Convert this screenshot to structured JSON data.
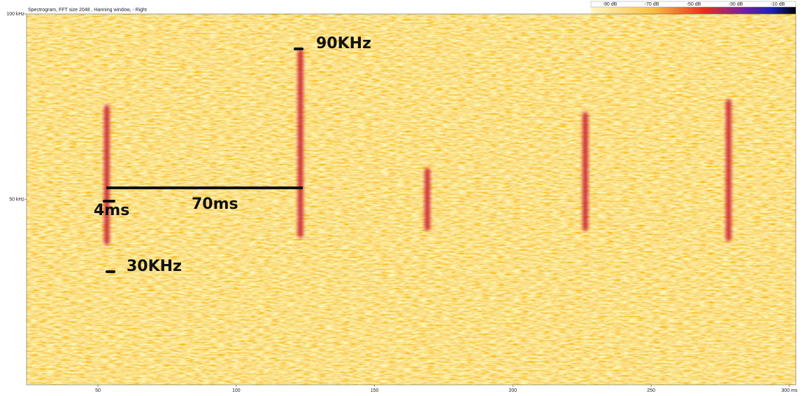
{
  "chart_data": {
    "type": "spectrogram",
    "title": "Spectrogram, FFT size 2048 , Hanning window, - Right",
    "xlim": [
      24.2,
      302.3
    ],
    "xticks": [
      50,
      100,
      150,
      200,
      250,
      {
        "value": 300,
        "label": "300 ms"
      }
    ],
    "ylim": [
      0,
      100
    ],
    "yticks": [
      {
        "value": 50,
        "label": "50 kHz"
      },
      {
        "value": 100,
        "label": "100 kHz"
      }
    ],
    "colorbar_labels": [
      "-90 dB",
      "-70 dB",
      "-50 dB",
      "-30 dB",
      "-10 dB"
    ],
    "call_color": "#c8102e",
    "calls": [
      {
        "time": 53.2,
        "fmin": 37.7,
        "fmax": 75.5
      },
      {
        "time": 123.2,
        "fmin": 39.6,
        "fmax": 90.6
      },
      {
        "time": 169.1,
        "fmin": 41.5,
        "fmax": 58.5
      },
      {
        "time": 226.2,
        "fmin": 41.5,
        "fmax": 73.6
      },
      {
        "time": 278,
        "fmin": 38.7,
        "fmax": 77
      }
    ],
    "annotations": [
      "90KHz",
      "70ms",
      "4ms",
      "30KHz"
    ]
  }
}
